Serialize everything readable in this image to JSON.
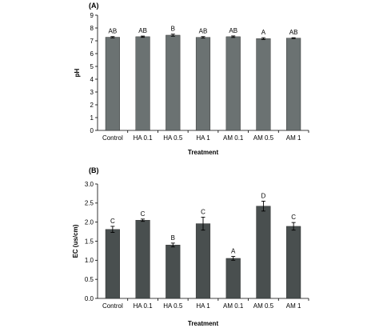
{
  "chart_data": [
    {
      "type": "bar",
      "panel": "(A)",
      "categories": [
        "Control",
        "HA 0.1",
        "HA 0.5",
        "HA 1",
        "AM 0.1",
        "AM 0.5",
        "AM 1"
      ],
      "values": [
        7.28,
        7.32,
        7.44,
        7.27,
        7.32,
        7.17,
        7.21
      ],
      "errors": [
        0.05,
        0.05,
        0.08,
        0.06,
        0.06,
        0.07,
        0.03
      ],
      "labels": [
        "AB",
        "AB",
        "B",
        "AB",
        "AB",
        "A",
        "AB"
      ],
      "xlabel": "Treatment",
      "ylabel": "pH",
      "ylim": [
        0,
        9
      ],
      "yticks": [
        "0",
        "1",
        "2",
        "3",
        "4",
        "5",
        "6",
        "7",
        "8",
        "9"
      ],
      "grid": false,
      "bar_color": "#6b7272"
    },
    {
      "type": "bar",
      "panel": "(B)",
      "categories": [
        "Control",
        "HA 0.1",
        "HA 0.5",
        "HA 1",
        "AM 0.1",
        "AM 0.5",
        "AM 1"
      ],
      "values": [
        1.81,
        2.05,
        1.4,
        1.96,
        1.05,
        2.42,
        1.89
      ],
      "errors": [
        0.08,
        0.03,
        0.05,
        0.17,
        0.05,
        0.13,
        0.1
      ],
      "labels": [
        "C",
        "C",
        "B",
        "C",
        "A",
        "D",
        "C"
      ],
      "xlabel": "Treatment",
      "ylabel": "EC (us/cm)",
      "ylim": [
        0,
        3
      ],
      "yticks": [
        "0.0",
        "0.5",
        "1.0",
        "1.5",
        "2.0",
        "2.5",
        "3.0"
      ],
      "grid": false,
      "bar_color": "#494f4f"
    }
  ]
}
